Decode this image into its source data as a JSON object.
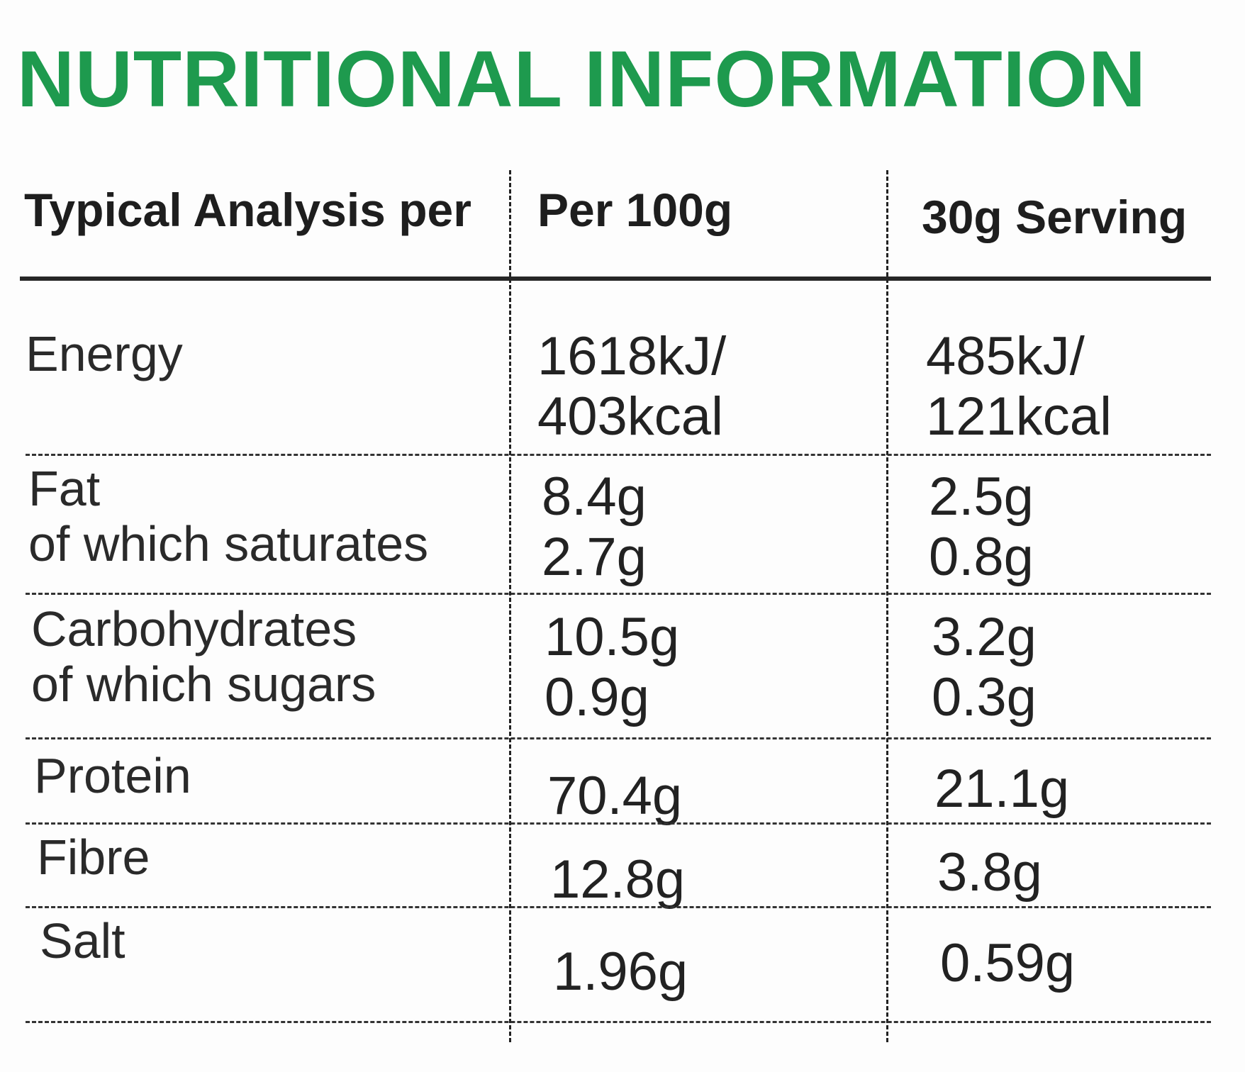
{
  "title": "NUTRITIONAL INFORMATION",
  "header": {
    "col1": "Typical Analysis per",
    "col2": "Per 100g",
    "col3": "30g Serving"
  },
  "rows": [
    {
      "label": [
        "Energy"
      ],
      "per100g": [
        "1618kJ/",
        "403kcal"
      ],
      "serving": [
        "485kJ/",
        "121kcal"
      ]
    },
    {
      "label": [
        "Fat",
        "of which saturates"
      ],
      "per100g": [
        "8.4g",
        "2.7g"
      ],
      "serving": [
        "2.5g",
        "0.8g"
      ]
    },
    {
      "label": [
        "Carbohydrates",
        "of which sugars"
      ],
      "per100g": [
        "10.5g",
        "0.9g"
      ],
      "serving": [
        "3.2g",
        "0.3g"
      ]
    },
    {
      "label": [
        "Protein"
      ],
      "per100g": [
        "70.4g"
      ],
      "serving": [
        "21.1g"
      ]
    },
    {
      "label": [
        "Fibre"
      ],
      "per100g": [
        "12.8g"
      ],
      "serving": [
        "3.8g"
      ]
    },
    {
      "label": [
        "Salt"
      ],
      "per100g": [
        "1.96g"
      ],
      "serving": [
        "0.59g"
      ]
    }
  ],
  "colors": {
    "title": "#1e9a4e",
    "text": "#1e1e1e",
    "rule": "#262626"
  }
}
